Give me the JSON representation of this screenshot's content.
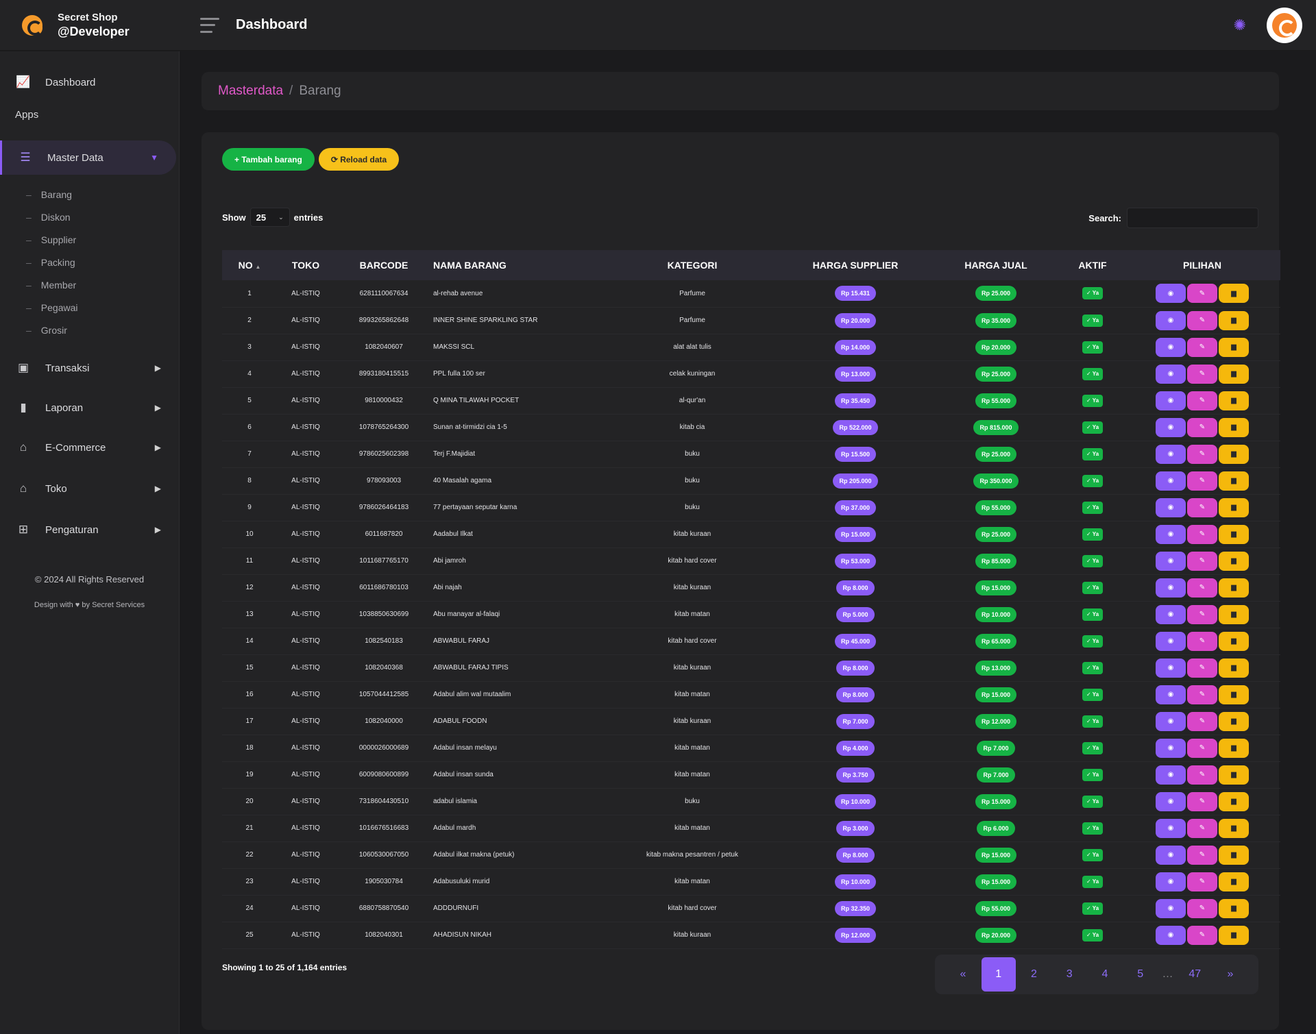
{
  "brand": {
    "shop": "Secret Shop",
    "user": "@Developer"
  },
  "topbar": {
    "title": "Dashboard"
  },
  "sidebar": {
    "dashboard": "Dashboard",
    "apps_label": "Apps",
    "master_data": "Master Data",
    "sub_items": [
      "Barang",
      "Diskon",
      "Supplier",
      "Packing",
      "Member",
      "Pegawai",
      "Grosir"
    ],
    "transaksi": "Transaksi",
    "laporan": "Laporan",
    "ecommerce": "E-Commerce",
    "toko": "Toko",
    "pengaturan": "Pengaturan",
    "footer_copy": "© 2024 All Rights Reserved",
    "footer_design": "Design with ♥ by Secret Services"
  },
  "breadcrumb": {
    "parent": "Masterdata",
    "separator": "/",
    "current": "Barang"
  },
  "actions": {
    "add": "+ Tambah barang",
    "reload": "⟳ Reload data"
  },
  "table_controls": {
    "show": "Show",
    "length": "25",
    "entries": "entries",
    "search_label": "Search:"
  },
  "columns": [
    "NO",
    "TOKO",
    "BARCODE",
    "NAMA BARANG",
    "KATEGORI",
    "HARGA SUPPLIER",
    "HARGA JUAL",
    "AKTIF",
    "PILIHAN"
  ],
  "sort_icon": "▲",
  "aktif_label": "✓ Ya",
  "rows": [
    {
      "no": "1",
      "toko": "AL-ISTIQ",
      "barcode": "6281110067634",
      "nama": "al-rehab avenue",
      "kategori": "Parfume",
      "supplier": "Rp 15.431",
      "jual": "Rp 25.000"
    },
    {
      "no": "2",
      "toko": "AL-ISTIQ",
      "barcode": "8993265862648",
      "nama": "INNER SHINE SPARKLING STAR",
      "kategori": "Parfume",
      "supplier": "Rp 20.000",
      "jual": "Rp 35.000"
    },
    {
      "no": "3",
      "toko": "AL-ISTIQ",
      "barcode": "1082040607",
      "nama": "MAKSSI SCL",
      "kategori": "alat alat tulis",
      "supplier": "Rp 14.000",
      "jual": "Rp 20.000"
    },
    {
      "no": "4",
      "toko": "AL-ISTIQ",
      "barcode": "8993180415515",
      "nama": "PPL fulla 100 ser",
      "kategori": "celak kuningan",
      "supplier": "Rp 13.000",
      "jual": "Rp 25.000"
    },
    {
      "no": "5",
      "toko": "AL-ISTIQ",
      "barcode": "9810000432",
      "nama": "Q MINA TILAWAH POCKET",
      "kategori": "al-qur'an",
      "supplier": "Rp 35.450",
      "jual": "Rp 55.000"
    },
    {
      "no": "6",
      "toko": "AL-ISTIQ",
      "barcode": "1078765264300",
      "nama": "Sunan at-tirmidzi cia 1-5",
      "kategori": "kitab cia",
      "supplier": "Rp 522.000",
      "jual": "Rp 815.000"
    },
    {
      "no": "7",
      "toko": "AL-ISTIQ",
      "barcode": "9786025602398",
      "nama": "Terj F.Majidiat",
      "kategori": "buku",
      "supplier": "Rp 15.500",
      "jual": "Rp 25.000"
    },
    {
      "no": "8",
      "toko": "AL-ISTIQ",
      "barcode": "978093003",
      "nama": "40 Masalah agama",
      "kategori": "buku",
      "supplier": "Rp 205.000",
      "jual": "Rp 350.000"
    },
    {
      "no": "9",
      "toko": "AL-ISTIQ",
      "barcode": "9786026464183",
      "nama": "77 pertayaan seputar karna",
      "kategori": "buku",
      "supplier": "Rp 37.000",
      "jual": "Rp 55.000"
    },
    {
      "no": "10",
      "toko": "AL-ISTIQ",
      "barcode": "6011687820",
      "nama": "Aadabul Ilkat",
      "kategori": "kitab kuraan",
      "supplier": "Rp 15.000",
      "jual": "Rp 25.000"
    },
    {
      "no": "11",
      "toko": "AL-ISTIQ",
      "barcode": "1011687765170",
      "nama": "Abi jamroh",
      "kategori": "kitab hard cover",
      "supplier": "Rp 53.000",
      "jual": "Rp 85.000"
    },
    {
      "no": "12",
      "toko": "AL-ISTIQ",
      "barcode": "6011686780103",
      "nama": "Abi najah",
      "kategori": "kitab kuraan",
      "supplier": "Rp 8.000",
      "jual": "Rp 15.000"
    },
    {
      "no": "13",
      "toko": "AL-ISTIQ",
      "barcode": "1038850630699",
      "nama": "Abu manayar al-falaqi",
      "kategori": "kitab matan",
      "supplier": "Rp 5.000",
      "jual": "Rp 10.000"
    },
    {
      "no": "14",
      "toko": "AL-ISTIQ",
      "barcode": "1082540183",
      "nama": "ABWABUL FARAJ",
      "kategori": "kitab hard cover",
      "supplier": "Rp 45.000",
      "jual": "Rp 65.000"
    },
    {
      "no": "15",
      "toko": "AL-ISTIQ",
      "barcode": "1082040368",
      "nama": "ABWABUL FARAJ TIPIS",
      "kategori": "kitab kuraan",
      "supplier": "Rp 8.000",
      "jual": "Rp 13.000"
    },
    {
      "no": "16",
      "toko": "AL-ISTIQ",
      "barcode": "1057044412585",
      "nama": "Adabul alim wal mutaalim",
      "kategori": "kitab matan",
      "supplier": "Rp 8.000",
      "jual": "Rp 15.000"
    },
    {
      "no": "17",
      "toko": "AL-ISTIQ",
      "barcode": "1082040000",
      "nama": "ADABUL FOODN",
      "kategori": "kitab kuraan",
      "supplier": "Rp 7.000",
      "jual": "Rp 12.000"
    },
    {
      "no": "18",
      "toko": "AL-ISTIQ",
      "barcode": "0000026000689",
      "nama": "Adabul insan melayu",
      "kategori": "kitab matan",
      "supplier": "Rp 4.000",
      "jual": "Rp 7.000"
    },
    {
      "no": "19",
      "toko": "AL-ISTIQ",
      "barcode": "6009080600899",
      "nama": "Adabul insan sunda",
      "kategori": "kitab matan",
      "supplier": "Rp 3.750",
      "jual": "Rp 7.000"
    },
    {
      "no": "20",
      "toko": "AL-ISTIQ",
      "barcode": "7318604430510",
      "nama": "adabul islamia",
      "kategori": "buku",
      "supplier": "Rp 10.000",
      "jual": "Rp 15.000"
    },
    {
      "no": "21",
      "toko": "AL-ISTIQ",
      "barcode": "1016676516683",
      "nama": "Adabul mardh",
      "kategori": "kitab matan",
      "supplier": "Rp 3.000",
      "jual": "Rp 6.000"
    },
    {
      "no": "22",
      "toko": "AL-ISTIQ",
      "barcode": "1060530067050",
      "nama": "Adabul ilkat makna (petuk)",
      "kategori": "kitab makna pesantren / petuk",
      "supplier": "Rp 8.000",
      "jual": "Rp 15.000"
    },
    {
      "no": "23",
      "toko": "AL-ISTIQ",
      "barcode": "1905030784",
      "nama": "Adabusuluki murid",
      "kategori": "kitab matan",
      "supplier": "Rp 10.000",
      "jual": "Rp 15.000"
    },
    {
      "no": "24",
      "toko": "AL-ISTIQ",
      "barcode": "6880758870540",
      "nama": "ADDDURNUFI",
      "kategori": "kitab hard cover",
      "supplier": "Rp 32.350",
      "jual": "Rp 55.000"
    },
    {
      "no": "25",
      "toko": "AL-ISTIQ",
      "barcode": "1082040301",
      "nama": "AHADISUN NIKAH",
      "kategori": "kitab kuraan",
      "supplier": "Rp 12.000",
      "jual": "Rp 20.000"
    }
  ],
  "footer_info": "Showing 1 to 25 of 1,164 entries",
  "pagination": {
    "first": "«",
    "pages": [
      "1",
      "2",
      "3",
      "4",
      "5"
    ],
    "dots": "…",
    "last_page": "47",
    "last": "»",
    "active": "1"
  },
  "colors": {
    "accent": "#8b5cf6",
    "pink": "#d946c8",
    "green": "#16b345",
    "yellow": "#f5b80c"
  },
  "icons": {
    "view": "eye-icon",
    "edit": "pencil-icon",
    "delete": "trash-icon"
  }
}
